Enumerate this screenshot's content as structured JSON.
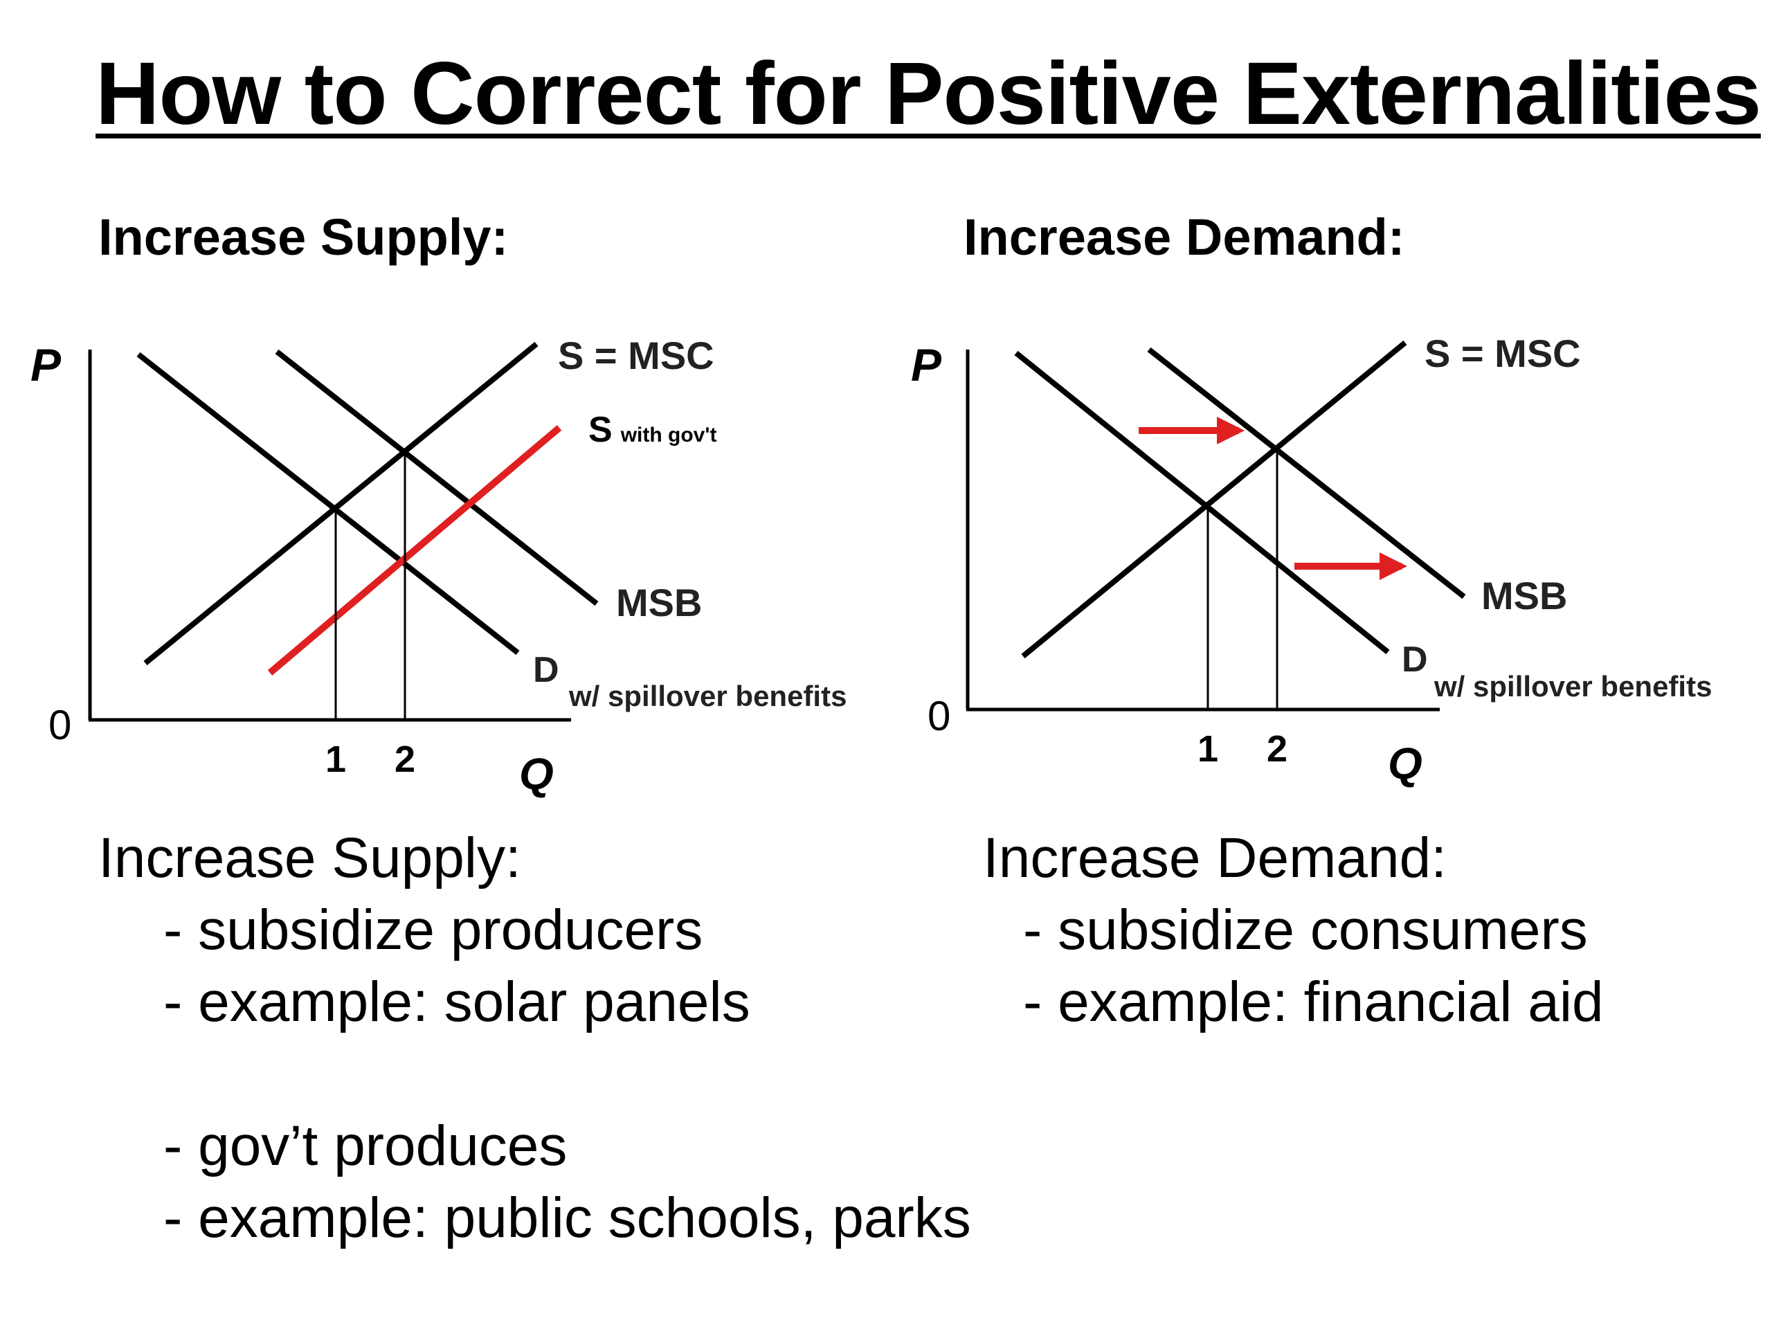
{
  "title": "How to Correct for Positive Externalities",
  "left_heading": "Increase Supply:",
  "right_heading": "Increase Demand:",
  "colors": {
    "curve": "#000000",
    "shift": "#e02020"
  },
  "left_graph": {
    "y_axis_label": "P",
    "x_axis_label": "Q",
    "origin_label": "0",
    "q_ticks": [
      "1",
      "2"
    ],
    "supply_label": "S = MSC",
    "gov_supply_label_main": "S",
    "gov_supply_label_sub": "with gov't",
    "msb_label": "MSB",
    "demand_label": "D",
    "spillover_label": "w/ spillover benefits"
  },
  "right_graph": {
    "y_axis_label": "P",
    "x_axis_label": "Q",
    "origin_label": "0",
    "q_ticks": [
      "1",
      "2"
    ],
    "supply_label": "S = MSC",
    "msb_label": "MSB",
    "demand_label": "D",
    "spillover_label": "w/ spillover benefits",
    "arrows": [
      "shift-right",
      "shift-right"
    ]
  },
  "left_text": {
    "heading": "Increase Supply:",
    "items": [
      "- subsidize producers",
      "- example: solar panels"
    ],
    "items_2": [
      "- gov’t produces",
      "- example: public schools, parks"
    ]
  },
  "right_text": {
    "heading": "Increase Demand:",
    "items": [
      "- subsidize consumers",
      "- example: financial aid"
    ]
  }
}
